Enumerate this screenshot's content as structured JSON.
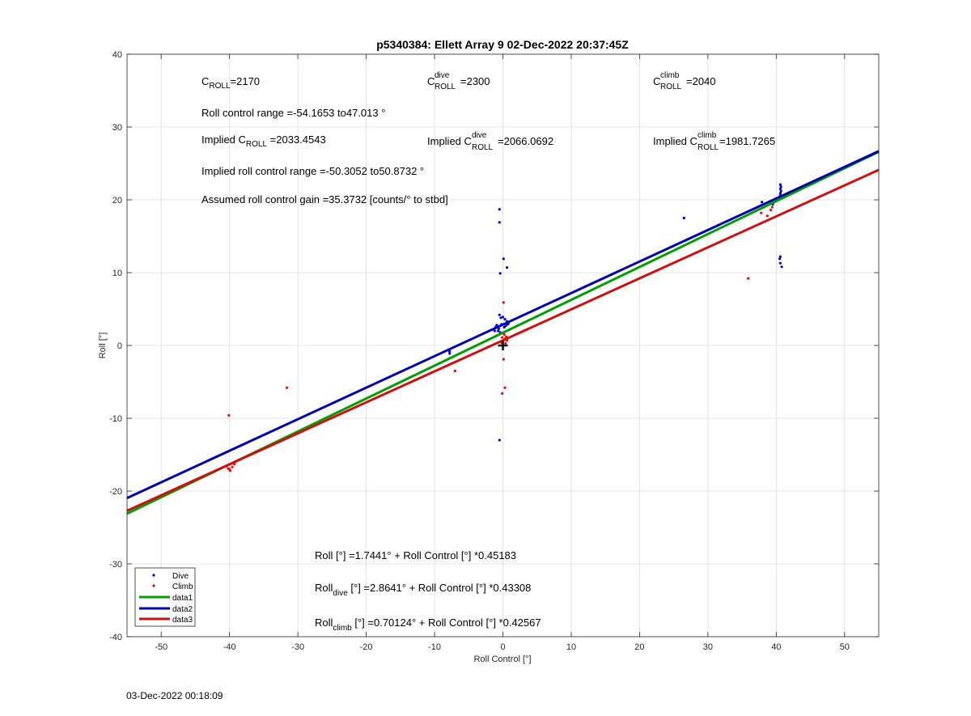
{
  "chart_data": {
    "type": "scatter",
    "title": "p5340384: Ellett Array 9 02-Dec-2022 20:37:45Z",
    "xlabel": "Roll Control [°]",
    "ylabel": "Roll [°]",
    "xlim": [
      -55,
      55
    ],
    "ylim": [
      -40,
      40
    ],
    "xticks": [
      -50,
      -40,
      -30,
      -20,
      -10,
      0,
      10,
      20,
      30,
      40,
      50
    ],
    "yticks": [
      -40,
      -30,
      -20,
      -10,
      0,
      10,
      20,
      30,
      40
    ],
    "grid": true,
    "legend_position": "bottom-left",
    "series": [
      {
        "name": "Dive",
        "kind": "points",
        "color": "#0000ff",
        "points": [
          [
            -0.5,
            18.7
          ],
          [
            -0.5,
            16.9
          ],
          [
            0.1,
            11.9
          ],
          [
            0.6,
            10.7
          ],
          [
            -0.4,
            9.9
          ],
          [
            -0.5,
            4.2
          ],
          [
            -0.3,
            3.8
          ],
          [
            0.0,
            3.9
          ],
          [
            0.3,
            3.6
          ],
          [
            0.6,
            3.3
          ],
          [
            0.8,
            3.0
          ],
          [
            -0.9,
            2.8
          ],
          [
            -1.1,
            2.4
          ],
          [
            -1.3,
            2.2
          ],
          [
            -0.7,
            2.0
          ],
          [
            -0.4,
            1.8
          ],
          [
            -1.0,
            2.6
          ],
          [
            -0.2,
            2.9
          ],
          [
            0.2,
            2.5
          ],
          [
            0.4,
            2.7
          ],
          [
            -0.6,
            2.3
          ],
          [
            0.7,
            2.9
          ],
          [
            -1.2,
            2.0
          ],
          [
            -7.8,
            -0.8
          ],
          [
            -7.8,
            -1.1
          ],
          [
            -0.5,
            -13.0
          ],
          [
            26.5,
            17.5
          ],
          [
            37.9,
            19.7
          ],
          [
            39.5,
            19.4
          ],
          [
            40.6,
            20.3
          ],
          [
            40.6,
            20.6
          ],
          [
            40.6,
            20.9
          ],
          [
            40.7,
            21.2
          ],
          [
            40.6,
            21.5
          ],
          [
            40.7,
            21.8
          ],
          [
            40.6,
            22.1
          ],
          [
            40.6,
            12.2
          ],
          [
            40.5,
            11.9
          ],
          [
            40.6,
            11.3
          ],
          [
            40.8,
            10.8
          ]
        ]
      },
      {
        "name": "Climb",
        "kind": "points",
        "color": "#ff0000",
        "points": [
          [
            -40.1,
            -9.6
          ],
          [
            -31.6,
            -5.8
          ],
          [
            -7.0,
            -3.5
          ],
          [
            -40.5,
            -16.6
          ],
          [
            -40.2,
            -16.9
          ],
          [
            -39.9,
            -17.2
          ],
          [
            -40.0,
            -17.0
          ],
          [
            -39.6,
            -16.7
          ],
          [
            -39.3,
            -16.3
          ],
          [
            0.1,
            5.9
          ],
          [
            0.1,
            -1.9
          ],
          [
            0.3,
            -5.8
          ],
          [
            -0.1,
            -6.6
          ],
          [
            -0.2,
            0.4
          ],
          [
            0.0,
            0.6
          ],
          [
            0.3,
            0.9
          ],
          [
            0.5,
            1.2
          ],
          [
            0.2,
            1.5
          ],
          [
            -0.1,
            1.1
          ],
          [
            0.6,
            0.7
          ],
          [
            0.4,
            0.3
          ],
          [
            35.9,
            9.2
          ],
          [
            37.8,
            18.2
          ],
          [
            38.7,
            17.8
          ],
          [
            39.2,
            18.6
          ],
          [
            39.4,
            19.0
          ]
        ]
      },
      {
        "name": "data1",
        "kind": "line",
        "color": "#00a000",
        "intercept": 1.7441,
        "slope": 0.45183
      },
      {
        "name": "data2",
        "kind": "line",
        "color": "#0000b0",
        "intercept": 2.8641,
        "slope": 0.43308
      },
      {
        "name": "data3",
        "kind": "line",
        "color": "#d01010",
        "intercept": 0.70124,
        "slope": 0.42567
      }
    ],
    "marker": {
      "x": 0,
      "y": 0,
      "symbol": "+"
    },
    "annotations": {
      "c_roll": {
        "main": "C",
        "sub": "ROLL",
        "value": "=2170"
      },
      "c_roll_dive": {
        "main": "C",
        "sup": "dive",
        "sub": "ROLL",
        "value": "=2300"
      },
      "c_roll_climb": {
        "main": "C",
        "sup": "climb",
        "sub": "ROLL",
        "value": "=2040"
      },
      "roll_range": "Roll control range =-54.1653 to47.013 °",
      "implied_c_roll": {
        "prefix": "Implied C",
        "sub": "ROLL",
        "value": " =2033.4543"
      },
      "implied_c_roll_dive": {
        "prefix": "Implied C",
        "sup": "dive",
        "sub": "ROLL",
        "value": "=2066.0692"
      },
      "implied_c_roll_climb": {
        "prefix": "Implied C",
        "sup": "climb",
        "sub": "ROLL",
        "value": " =1981.7265"
      },
      "implied_range": "Implied roll control range =-50.3052 to50.8732 °",
      "gain": "Assumed roll control gain =35.3732 [counts/° to stbd]",
      "fit_all": "Roll [°] =1.7441° + Roll Control [°] *0.45183",
      "fit_dive": {
        "main": "Roll",
        "sub": "dive",
        "rest": " [°] =2.8641° + Roll Control [°] *0.43308"
      },
      "fit_climb": {
        "main": "Roll",
        "sub": "climb",
        "rest": " [°] =0.70124° + Roll Control [°] *0.42567"
      }
    }
  },
  "footer_timestamp": "03-Dec-2022 00:18:09"
}
